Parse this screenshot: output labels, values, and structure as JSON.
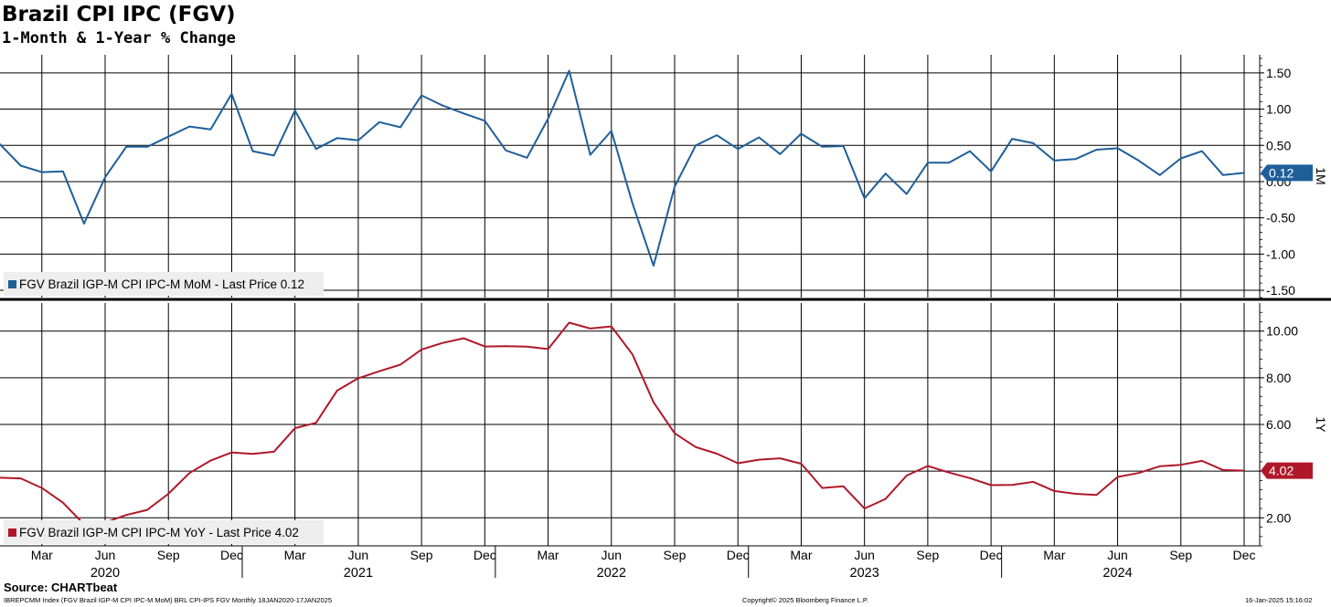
{
  "title": "Brazil CPI IPC (FGV)",
  "subtitle": "1-Month & 1-Year % Change",
  "source": "Source: CHARTbeat",
  "footer": {
    "left": "IBREPCMM Index (FGV Brazil IGP-M CPI IPC-M MoM) BRL CPI-IPS FGV  Monthly 18JAN2020-17JAN2025",
    "center": "Copyright© 2025 Bloomberg Finance L.P.",
    "right": "16-Jan-2025 15:16:02"
  },
  "colors": {
    "mom": "#1f5f99",
    "yoy": "#b0182a",
    "grid": "#000000"
  },
  "chart_data": [
    {
      "type": "line",
      "panel_label": "1M",
      "legend": "FGV Brazil IGP-M CPI IPC-M MoM - Last Price 0.12",
      "last_value_label": "0.12",
      "ylim": [
        -1.6,
        1.75
      ],
      "yticks": [
        "1.50",
        "1.00",
        "0.50",
        "0.00",
        "-0.50",
        "-1.00",
        "-1.50"
      ],
      "ytick_values": [
        1.5,
        1.0,
        0.5,
        0.0,
        -0.5,
        -1.0,
        -1.5
      ],
      "grid": true,
      "legend_position": "bottom-left",
      "x": [
        "2020-01",
        "2020-02",
        "2020-03",
        "2020-04",
        "2020-05",
        "2020-06",
        "2020-07",
        "2020-08",
        "2020-09",
        "2020-10",
        "2020-11",
        "2020-12",
        "2021-01",
        "2021-02",
        "2021-03",
        "2021-04",
        "2021-05",
        "2021-06",
        "2021-07",
        "2021-08",
        "2021-09",
        "2021-10",
        "2021-11",
        "2021-12",
        "2022-01",
        "2022-02",
        "2022-03",
        "2022-04",
        "2022-05",
        "2022-06",
        "2022-07",
        "2022-08",
        "2022-09",
        "2022-10",
        "2022-11",
        "2022-12",
        "2023-01",
        "2023-02",
        "2023-03",
        "2023-04",
        "2023-05",
        "2023-06",
        "2023-07",
        "2023-08",
        "2023-09",
        "2023-10",
        "2023-11",
        "2023-12",
        "2024-01",
        "2024-02",
        "2024-03",
        "2024-04",
        "2024-05",
        "2024-06",
        "2024-07",
        "2024-08",
        "2024-09",
        "2024-10",
        "2024-11",
        "2024-12"
      ],
      "series": [
        {
          "values": [
            0.52,
            0.22,
            0.13,
            0.14,
            -0.58,
            0.06,
            0.48,
            0.48,
            0.62,
            0.76,
            0.72,
            1.21,
            0.42,
            0.36,
            0.98,
            0.45,
            0.6,
            0.57,
            0.82,
            0.75,
            1.19,
            1.05,
            0.94,
            0.84,
            0.43,
            0.33,
            0.87,
            1.53,
            0.37,
            0.7,
            -0.3,
            -1.16,
            -0.07,
            0.5,
            0.64,
            0.45,
            0.61,
            0.38,
            0.66,
            0.48,
            0.49,
            -0.23,
            0.11,
            -0.17,
            0.26,
            0.26,
            0.42,
            0.14,
            0.59,
            0.53,
            0.29,
            0.31,
            0.44,
            0.46,
            0.29,
            0.09,
            0.32,
            0.42,
            0.09,
            0.12
          ]
        }
      ]
    },
    {
      "type": "line",
      "panel_label": "1Y",
      "legend": "FGV Brazil IGP-M CPI IPC-M YoY - Last Price 4.02",
      "last_value_label": "4.02",
      "ylim": [
        0.8,
        11.2
      ],
      "yticks": [
        "10.00",
        "8.00",
        "6.00",
        "4.00",
        "2.00"
      ],
      "ytick_values": [
        10,
        8,
        6,
        4,
        2
      ],
      "grid": true,
      "legend_position": "bottom-left",
      "x": [
        "2020-01",
        "2020-02",
        "2020-03",
        "2020-04",
        "2020-05",
        "2020-06",
        "2020-07",
        "2020-08",
        "2020-09",
        "2020-10",
        "2020-11",
        "2020-12",
        "2021-01",
        "2021-02",
        "2021-03",
        "2021-04",
        "2021-05",
        "2021-06",
        "2021-07",
        "2021-08",
        "2021-09",
        "2021-10",
        "2021-11",
        "2021-12",
        "2022-01",
        "2022-02",
        "2022-03",
        "2022-04",
        "2022-05",
        "2022-06",
        "2022-07",
        "2022-08",
        "2022-09",
        "2022-10",
        "2022-11",
        "2022-12",
        "2023-01",
        "2023-02",
        "2023-03",
        "2023-04",
        "2023-05",
        "2023-06",
        "2023-07",
        "2023-08",
        "2023-09",
        "2023-10",
        "2023-11",
        "2023-12",
        "2024-01",
        "2024-02",
        "2024-03",
        "2024-04",
        "2024-05",
        "2024-06",
        "2024-07",
        "2024-08",
        "2024-09",
        "2024-10",
        "2024-11",
        "2024-12"
      ],
      "series": [
        {
          "values": [
            3.72,
            3.69,
            3.28,
            2.65,
            1.72,
            1.8,
            2.12,
            2.34,
            3.03,
            3.92,
            4.45,
            4.8,
            4.74,
            4.83,
            5.84,
            6.07,
            7.45,
            7.98,
            8.28,
            8.56,
            9.21,
            9.49,
            9.69,
            9.34,
            9.35,
            9.33,
            9.23,
            10.36,
            10.11,
            10.2,
            9.0,
            6.95,
            5.62,
            5.03,
            4.75,
            4.34,
            4.49,
            4.55,
            4.32,
            3.28,
            3.35,
            2.4,
            2.81,
            3.81,
            4.22,
            3.94,
            3.7,
            3.4,
            3.41,
            3.54,
            3.15,
            3.03,
            2.98,
            3.75,
            3.92,
            4.21,
            4.27,
            4.44,
            4.05,
            4.02
          ]
        }
      ]
    }
  ],
  "x_axis": {
    "month_labels": [
      {
        "m": "2020-03",
        "label": "Mar"
      },
      {
        "m": "2020-06",
        "label": "Jun"
      },
      {
        "m": "2020-09",
        "label": "Sep"
      },
      {
        "m": "2020-12",
        "label": "Dec"
      },
      {
        "m": "2021-03",
        "label": "Mar"
      },
      {
        "m": "2021-06",
        "label": "Jun"
      },
      {
        "m": "2021-09",
        "label": "Sep"
      },
      {
        "m": "2021-12",
        "label": "Dec"
      },
      {
        "m": "2022-03",
        "label": "Mar"
      },
      {
        "m": "2022-06",
        "label": "Jun"
      },
      {
        "m": "2022-09",
        "label": "Sep"
      },
      {
        "m": "2022-12",
        "label": "Dec"
      },
      {
        "m": "2023-03",
        "label": "Mar"
      },
      {
        "m": "2023-06",
        "label": "Jun"
      },
      {
        "m": "2023-09",
        "label": "Sep"
      },
      {
        "m": "2023-12",
        "label": "Dec"
      },
      {
        "m": "2024-03",
        "label": "Mar"
      },
      {
        "m": "2024-06",
        "label": "Jun"
      },
      {
        "m": "2024-09",
        "label": "Sep"
      },
      {
        "m": "2024-12",
        "label": "Dec"
      }
    ],
    "year_labels": [
      {
        "m": "2020-06",
        "label": "2020"
      },
      {
        "m": "2021-06",
        "label": "2021"
      },
      {
        "m": "2022-06",
        "label": "2022"
      },
      {
        "m": "2023-06",
        "label": "2023"
      },
      {
        "m": "2024-06",
        "label": "2024"
      }
    ]
  }
}
